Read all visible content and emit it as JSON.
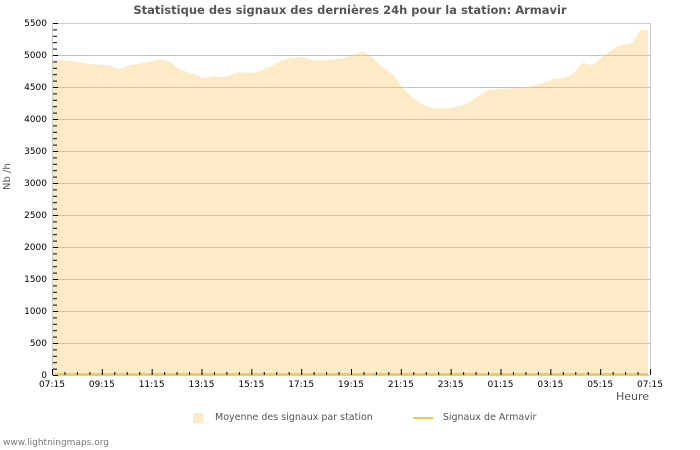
{
  "title": "Statistique des signaux des dernières 24h pour la station: Armavir",
  "y_axis_label": "Nb /h",
  "x_axis_label": "Heure",
  "legend": {
    "area_label": "Moyenne des signaux par station",
    "line_label": "Signaux de Armavir"
  },
  "footer": "www.lightningmaps.org",
  "colors": {
    "area": "#fdebc7",
    "line": "#f6c94b",
    "grid": "#d6c4a0",
    "frame": "#cccccc"
  },
  "chart_data": {
    "type": "area",
    "title": "Statistique des signaux des dernières 24h pour la station: Armavir",
    "xlabel": "Heure",
    "ylabel": "Nb /h",
    "ylim": [
      0,
      5500
    ],
    "y_ticks": [
      0,
      500,
      1000,
      1500,
      2000,
      2500,
      3000,
      3500,
      4000,
      4500,
      5000,
      5500
    ],
    "x_ticks": [
      "07:15",
      "09:15",
      "11:15",
      "13:15",
      "15:15",
      "17:15",
      "19:15",
      "21:15",
      "23:15",
      "01:15",
      "03:15",
      "05:15",
      "07:15"
    ],
    "grid": true,
    "legend_position": "bottom",
    "series": [
      {
        "name": "Moyenne des signaux par station",
        "kind": "area",
        "x_hours": [
          0,
          0.3,
          0.9,
          1.5,
          2.3,
          2.7,
          3.1,
          3.7,
          4.3,
          4.7,
          5.1,
          5.7,
          6.1,
          6.5,
          6.9,
          7.5,
          8.1,
          8.7,
          9.3,
          9.9,
          10.5,
          11.1,
          11.7,
          12.1,
          12.5,
          12.9,
          13.3,
          13.7,
          14.1,
          14.5,
          14.9,
          15.3,
          15.9,
          16.3,
          16.7,
          17.1,
          17.5,
          17.9,
          18.5,
          19.1,
          19.7,
          20.1,
          20.5,
          20.9,
          21.3,
          21.7,
          22.1,
          22.7,
          23.3,
          23.6,
          23.9
        ],
        "values": [
          4890,
          4920,
          4900,
          4860,
          4840,
          4780,
          4840,
          4880,
          4930,
          4900,
          4780,
          4700,
          4640,
          4670,
          4650,
          4730,
          4720,
          4810,
          4930,
          4970,
          4920,
          4920,
          4950,
          5010,
          5050,
          4950,
          4800,
          4690,
          4470,
          4330,
          4220,
          4170,
          4170,
          4200,
          4250,
          4360,
          4450,
          4470,
          4480,
          4500,
          4560,
          4620,
          4640,
          4700,
          4880,
          4840,
          4980,
          5140,
          5190,
          5390,
          5390
        ]
      },
      {
        "name": "Signaux de Armavir",
        "kind": "line",
        "x_hours": [
          0,
          24
        ],
        "values": [
          0,
          0
        ]
      }
    ]
  }
}
